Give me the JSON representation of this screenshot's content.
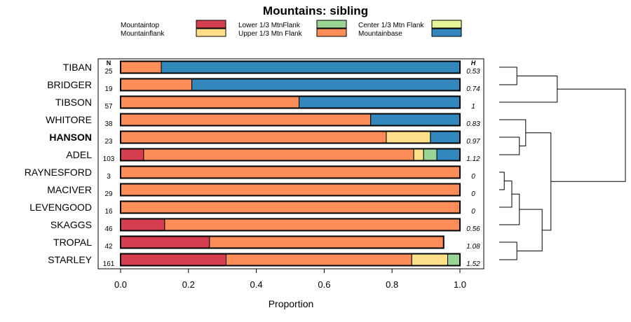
{
  "chart_data": {
    "type": "bar",
    "orientation": "horizontal",
    "stacked": true,
    "title": "Mountains: sibling",
    "xlabel": "Proportion",
    "ylabel": "",
    "xlim": [
      0,
      1
    ],
    "xticks": [
      "0.0",
      "0.2",
      "0.4",
      "0.6",
      "0.8",
      "1.0"
    ],
    "n_header": "N",
    "h_header": "H",
    "legend_position": "top",
    "categories": [
      "Mountaintop",
      "Mountainflank",
      "Lower 1/3 MtnFlank",
      "Upper 1/3 Mtn Flank",
      "Center 1/3 Mtn Flank",
      "Mountainbase"
    ],
    "colors": {
      "Mountaintop": "#d53e4f",
      "Mountainflank": "#fee08b",
      "Lower 1/3 MtnFlank": "#99d594",
      "Upper 1/3 Mtn Flank": "#fc8d59",
      "Center 1/3 Mtn Flank": "#e6f598",
      "Mountainbase": "#3288bd"
    },
    "series_order": [
      "Mountaintop",
      "Upper 1/3 Mtn Flank",
      "Mountainflank",
      "Center 1/3 Mtn Flank",
      "Lower 1/3 MtnFlank",
      "Mountainbase"
    ],
    "rows": [
      {
        "label": "TIBAN",
        "n": "25",
        "h": "0.53",
        "bold": false,
        "values": {
          "Mountaintop": 0,
          "Upper 1/3 Mtn Flank": 0.12,
          "Mountainflank": 0,
          "Center 1/3 Mtn Flank": 0,
          "Lower 1/3 MtnFlank": 0,
          "Mountainbase": 0.88
        }
      },
      {
        "label": "BRIDGER",
        "n": "19",
        "h": "0.74",
        "bold": false,
        "values": {
          "Mountaintop": 0,
          "Upper 1/3 Mtn Flank": 0.21,
          "Mountainflank": 0,
          "Center 1/3 Mtn Flank": 0,
          "Lower 1/3 MtnFlank": 0,
          "Mountainbase": 0.79
        }
      },
      {
        "label": "TIBSON",
        "n": "57",
        "h": "1",
        "bold": false,
        "values": {
          "Mountaintop": 0,
          "Upper 1/3 Mtn Flank": 0.526,
          "Mountainflank": 0,
          "Center 1/3 Mtn Flank": 0,
          "Lower 1/3 MtnFlank": 0,
          "Mountainbase": 0.474
        }
      },
      {
        "label": "WHITORE",
        "n": "38",
        "h": "0.83",
        "bold": false,
        "values": {
          "Mountaintop": 0,
          "Upper 1/3 Mtn Flank": 0.737,
          "Mountainflank": 0,
          "Center 1/3 Mtn Flank": 0,
          "Lower 1/3 MtnFlank": 0,
          "Mountainbase": 0.263
        }
      },
      {
        "label": "HANSON",
        "n": "23",
        "h": "0.97",
        "bold": true,
        "values": {
          "Mountaintop": 0,
          "Upper 1/3 Mtn Flank": 0.783,
          "Mountainflank": 0.13,
          "Center 1/3 Mtn Flank": 0,
          "Lower 1/3 MtnFlank": 0,
          "Mountainbase": 0.087
        }
      },
      {
        "label": "ADEL",
        "n": "103",
        "h": "1.12",
        "bold": false,
        "values": {
          "Mountaintop": 0.068,
          "Upper 1/3 Mtn Flank": 0.796,
          "Mountainflank": 0.029,
          "Center 1/3 Mtn Flank": 0,
          "Lower 1/3 MtnFlank": 0.039,
          "Mountainbase": 0.068
        }
      },
      {
        "label": "RAYNESFORD",
        "n": "3",
        "h": "0",
        "bold": false,
        "values": {
          "Mountaintop": 0,
          "Upper 1/3 Mtn Flank": 1.0,
          "Mountainflank": 0,
          "Center 1/3 Mtn Flank": 0,
          "Lower 1/3 MtnFlank": 0,
          "Mountainbase": 0
        }
      },
      {
        "label": "MACIVER",
        "n": "29",
        "h": "0",
        "bold": false,
        "values": {
          "Mountaintop": 0,
          "Upper 1/3 Mtn Flank": 1.0,
          "Mountainflank": 0,
          "Center 1/3 Mtn Flank": 0,
          "Lower 1/3 MtnFlank": 0,
          "Mountainbase": 0
        }
      },
      {
        "label": "LEVENGOOD",
        "n": "16",
        "h": "0",
        "bold": false,
        "values": {
          "Mountaintop": 0,
          "Upper 1/3 Mtn Flank": 1.0,
          "Mountainflank": 0,
          "Center 1/3 Mtn Flank": 0,
          "Lower 1/3 MtnFlank": 0,
          "Mountainbase": 0
        }
      },
      {
        "label": "SKAGGS",
        "n": "46",
        "h": "0.56",
        "bold": false,
        "values": {
          "Mountaintop": 0.13,
          "Upper 1/3 Mtn Flank": 0.87,
          "Mountainflank": 0,
          "Center 1/3 Mtn Flank": 0,
          "Lower 1/3 MtnFlank": 0,
          "Mountainbase": 0
        }
      },
      {
        "label": "TROPAL",
        "n": "42",
        "h": "1.08",
        "bold": false,
        "values": {
          "Mountaintop": 0.262,
          "Upper 1/3 Mtn Flank": 0.69,
          "Mountainflank": 0,
          "Center 1/3 Mtn Flank": 0,
          "Lower 1/3 MtnFlank": 0,
          "Mountainbase": 0
        }
      },
      {
        "label": "STARLEY",
        "n": "161",
        "h": "1.52",
        "bold": false,
        "values": {
          "Mountaintop": 0.311,
          "Upper 1/3 Mtn Flank": 0.547,
          "Mountainflank": 0.106,
          "Center 1/3 Mtn Flank": 0,
          "Lower 1/3 MtnFlank": 0.036,
          "Mountainbase": 0
        }
      }
    ],
    "dendrogram": {
      "description": "hierarchical clustering of rows (leaf order top to bottom)",
      "leaves": [
        "TIBAN",
        "BRIDGER",
        "TIBSON",
        "WHITORE",
        "HANSON",
        "ADEL",
        "RAYNESFORD",
        "MACIVER",
        "LEVENGOOD",
        "SKAGGS",
        "TROPAL",
        "STARLEY"
      ],
      "merges": [
        {
          "id": "a",
          "left": "TIBAN",
          "right": "BRIDGER",
          "height": 0.14
        },
        {
          "id": "b",
          "left": "a",
          "right": "TIBSON",
          "height": 0.46
        },
        {
          "id": "c",
          "left": "HANSON",
          "right": "ADEL",
          "height": 0.16
        },
        {
          "id": "d",
          "left": "WHITORE",
          "right": "c",
          "height": 0.21
        },
        {
          "id": "e",
          "left": "RAYNESFORD",
          "right": "MACIVER",
          "height": 0.04
        },
        {
          "id": "f",
          "left": "e",
          "right": "LEVENGOOD",
          "height": 0.1
        },
        {
          "id": "g",
          "left": "f",
          "right": "SKAGGS",
          "height": 0.16
        },
        {
          "id": "h",
          "left": "TROPAL",
          "right": "STARLEY",
          "height": 0.14
        },
        {
          "id": "i",
          "left": "g",
          "right": "h",
          "height": 0.34
        },
        {
          "id": "j",
          "left": "d",
          "right": "i",
          "height": 0.41
        },
        {
          "id": "k",
          "left": "b",
          "right": "j",
          "height": 1.0
        }
      ]
    }
  }
}
